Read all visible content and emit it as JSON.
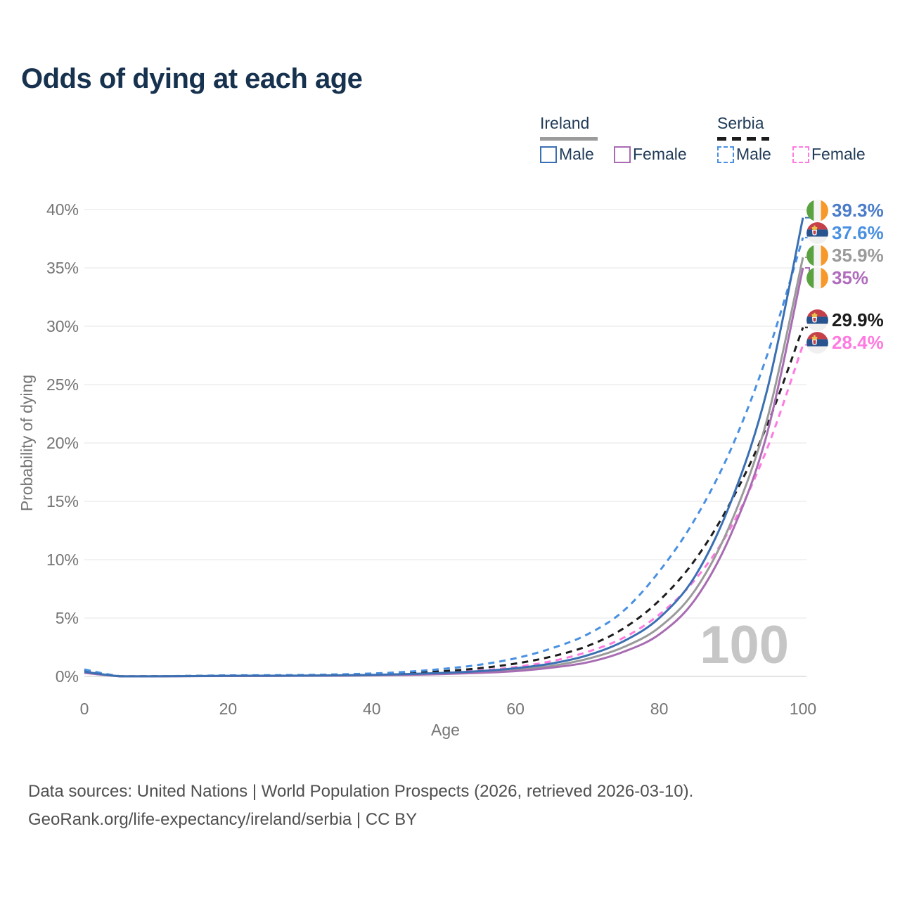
{
  "title": "Odds of dying at each age",
  "legend": {
    "groups": [
      {
        "label": "Ireland",
        "line_style": "solid",
        "underline_color": "#9b9b9b",
        "items": [
          {
            "label": "Male",
            "color": "#3a70b2",
            "dashed": false
          },
          {
            "label": "Female",
            "color": "#a86cb2",
            "dashed": false
          }
        ]
      },
      {
        "label": "Serbia",
        "line_style": "dashed",
        "underline_color": "#1c1c1c",
        "items": [
          {
            "label": "Male",
            "color": "#4a90e2",
            "dashed": true
          },
          {
            "label": "Female",
            "color": "#ff7ae0",
            "dashed": true
          }
        ]
      }
    ]
  },
  "axes": {
    "y": {
      "title": "Probability of dying",
      "tick_labels": [
        "0%",
        "5%",
        "10%",
        "15%",
        "20%",
        "25%",
        "30%",
        "35%",
        "40%"
      ],
      "tick_values": [
        0,
        5,
        10,
        15,
        20,
        25,
        30,
        35,
        40
      ],
      "min": 0,
      "max": 40
    },
    "x": {
      "title": "Age",
      "tick_values": [
        0,
        20,
        40,
        60,
        80,
        100
      ],
      "min": 0,
      "max": 100
    }
  },
  "watermark": "100",
  "footer": {
    "line1": "Data sources: United Nations | World Population Prospects (2026, retrieved 2026-03-10).",
    "line2": "GeoRank.org/life-expectancy/ireland/serbia | CC BY"
  },
  "chart_data": {
    "type": "line",
    "title": "Odds of dying at each age",
    "xlabel": "Age",
    "ylabel": "Probability of dying",
    "x_range": [
      0,
      100
    ],
    "y_range_percent": [
      0,
      40
    ],
    "grid": "horizontal",
    "legend_position": "top-right",
    "x_ages": [
      0,
      5,
      10,
      15,
      20,
      25,
      30,
      35,
      40,
      45,
      50,
      55,
      60,
      65,
      70,
      75,
      80,
      85,
      90,
      95,
      100
    ],
    "series": [
      {
        "name": "Serbia Female",
        "country": "Serbia",
        "sex": "Female",
        "color": "#ff7ae0",
        "label_color": "#ff7ae0",
        "dashed": true,
        "end_label": "28.4%",
        "end_value": 28.4,
        "values": [
          0.5,
          0.02,
          0.02,
          0.03,
          0.04,
          0.05,
          0.06,
          0.08,
          0.12,
          0.2,
          0.32,
          0.5,
          0.8,
          1.3,
          2.1,
          3.3,
          5.3,
          8.3,
          12.8,
          19.5,
          28.4
        ]
      },
      {
        "name": "Serbia Both",
        "country": "Serbia",
        "sex": "Both",
        "color": "#1c1c1c",
        "label_color": "#1c1c1c",
        "dashed": true,
        "end_label": "29.9%",
        "end_value": 29.9,
        "values": [
          0.55,
          0.02,
          0.02,
          0.04,
          0.06,
          0.07,
          0.09,
          0.12,
          0.18,
          0.28,
          0.45,
          0.7,
          1.1,
          1.7,
          2.6,
          4.1,
          6.5,
          10.0,
          15.0,
          21.5,
          29.9
        ]
      },
      {
        "name": "Serbia Male",
        "country": "Serbia",
        "sex": "Male",
        "color": "#4a90e2",
        "label_color": "#4a90e2",
        "dashed": true,
        "end_label": "37.6%",
        "end_value": 37.6,
        "values": [
          0.6,
          0.02,
          0.02,
          0.05,
          0.09,
          0.1,
          0.12,
          0.17,
          0.25,
          0.4,
          0.65,
          1.0,
          1.55,
          2.4,
          3.6,
          5.6,
          9.0,
          13.5,
          19.5,
          27.5,
          37.6
        ]
      },
      {
        "name": "Ireland Both",
        "country": "Ireland",
        "sex": "Both",
        "color": "#9a9a9a",
        "label_color": "#9b9b9b",
        "dashed": false,
        "end_label": "35.9%",
        "end_value": 35.9,
        "values": [
          0.35,
          0.01,
          0.01,
          0.025,
          0.04,
          0.05,
          0.06,
          0.08,
          0.11,
          0.17,
          0.25,
          0.38,
          0.58,
          0.9,
          1.5,
          2.5,
          4.2,
          7.4,
          13.2,
          22.0,
          35.9
        ]
      },
      {
        "name": "Ireland Female",
        "country": "Ireland",
        "sex": "Female",
        "color": "#a86cb2",
        "label_color": "#b06cbd",
        "dashed": false,
        "end_label": "35%",
        "end_value": 35.0,
        "values": [
          0.3,
          0.01,
          0.01,
          0.02,
          0.03,
          0.04,
          0.05,
          0.06,
          0.09,
          0.13,
          0.2,
          0.3,
          0.45,
          0.75,
          1.2,
          2.1,
          3.6,
          6.6,
          12.2,
          20.8,
          35.0
        ]
      },
      {
        "name": "Ireland Male",
        "country": "Ireland",
        "sex": "Male",
        "color": "#3a70b2",
        "label_color": "#4a7cc9",
        "dashed": false,
        "end_label": "39.3%",
        "end_value": 39.3,
        "values": [
          0.4,
          0.01,
          0.01,
          0.03,
          0.05,
          0.06,
          0.07,
          0.09,
          0.13,
          0.2,
          0.3,
          0.45,
          0.7,
          1.1,
          1.8,
          3.0,
          5.0,
          8.6,
          15.0,
          24.5,
          39.3
        ]
      }
    ],
    "end_label_order": [
      "Ireland Male",
      "Serbia Male",
      "Ireland Both",
      "Ireland Female",
      "Serbia Both",
      "Serbia Female"
    ]
  },
  "flag_colors": {
    "ireland": {
      "green": "#59a23f",
      "white": "#f4f4f4",
      "orange": "#f7982a"
    },
    "serbia": {
      "red": "#c6404a",
      "blue": "#27538e",
      "white": "#f0f0f0",
      "crown": "#e8c24a"
    }
  }
}
